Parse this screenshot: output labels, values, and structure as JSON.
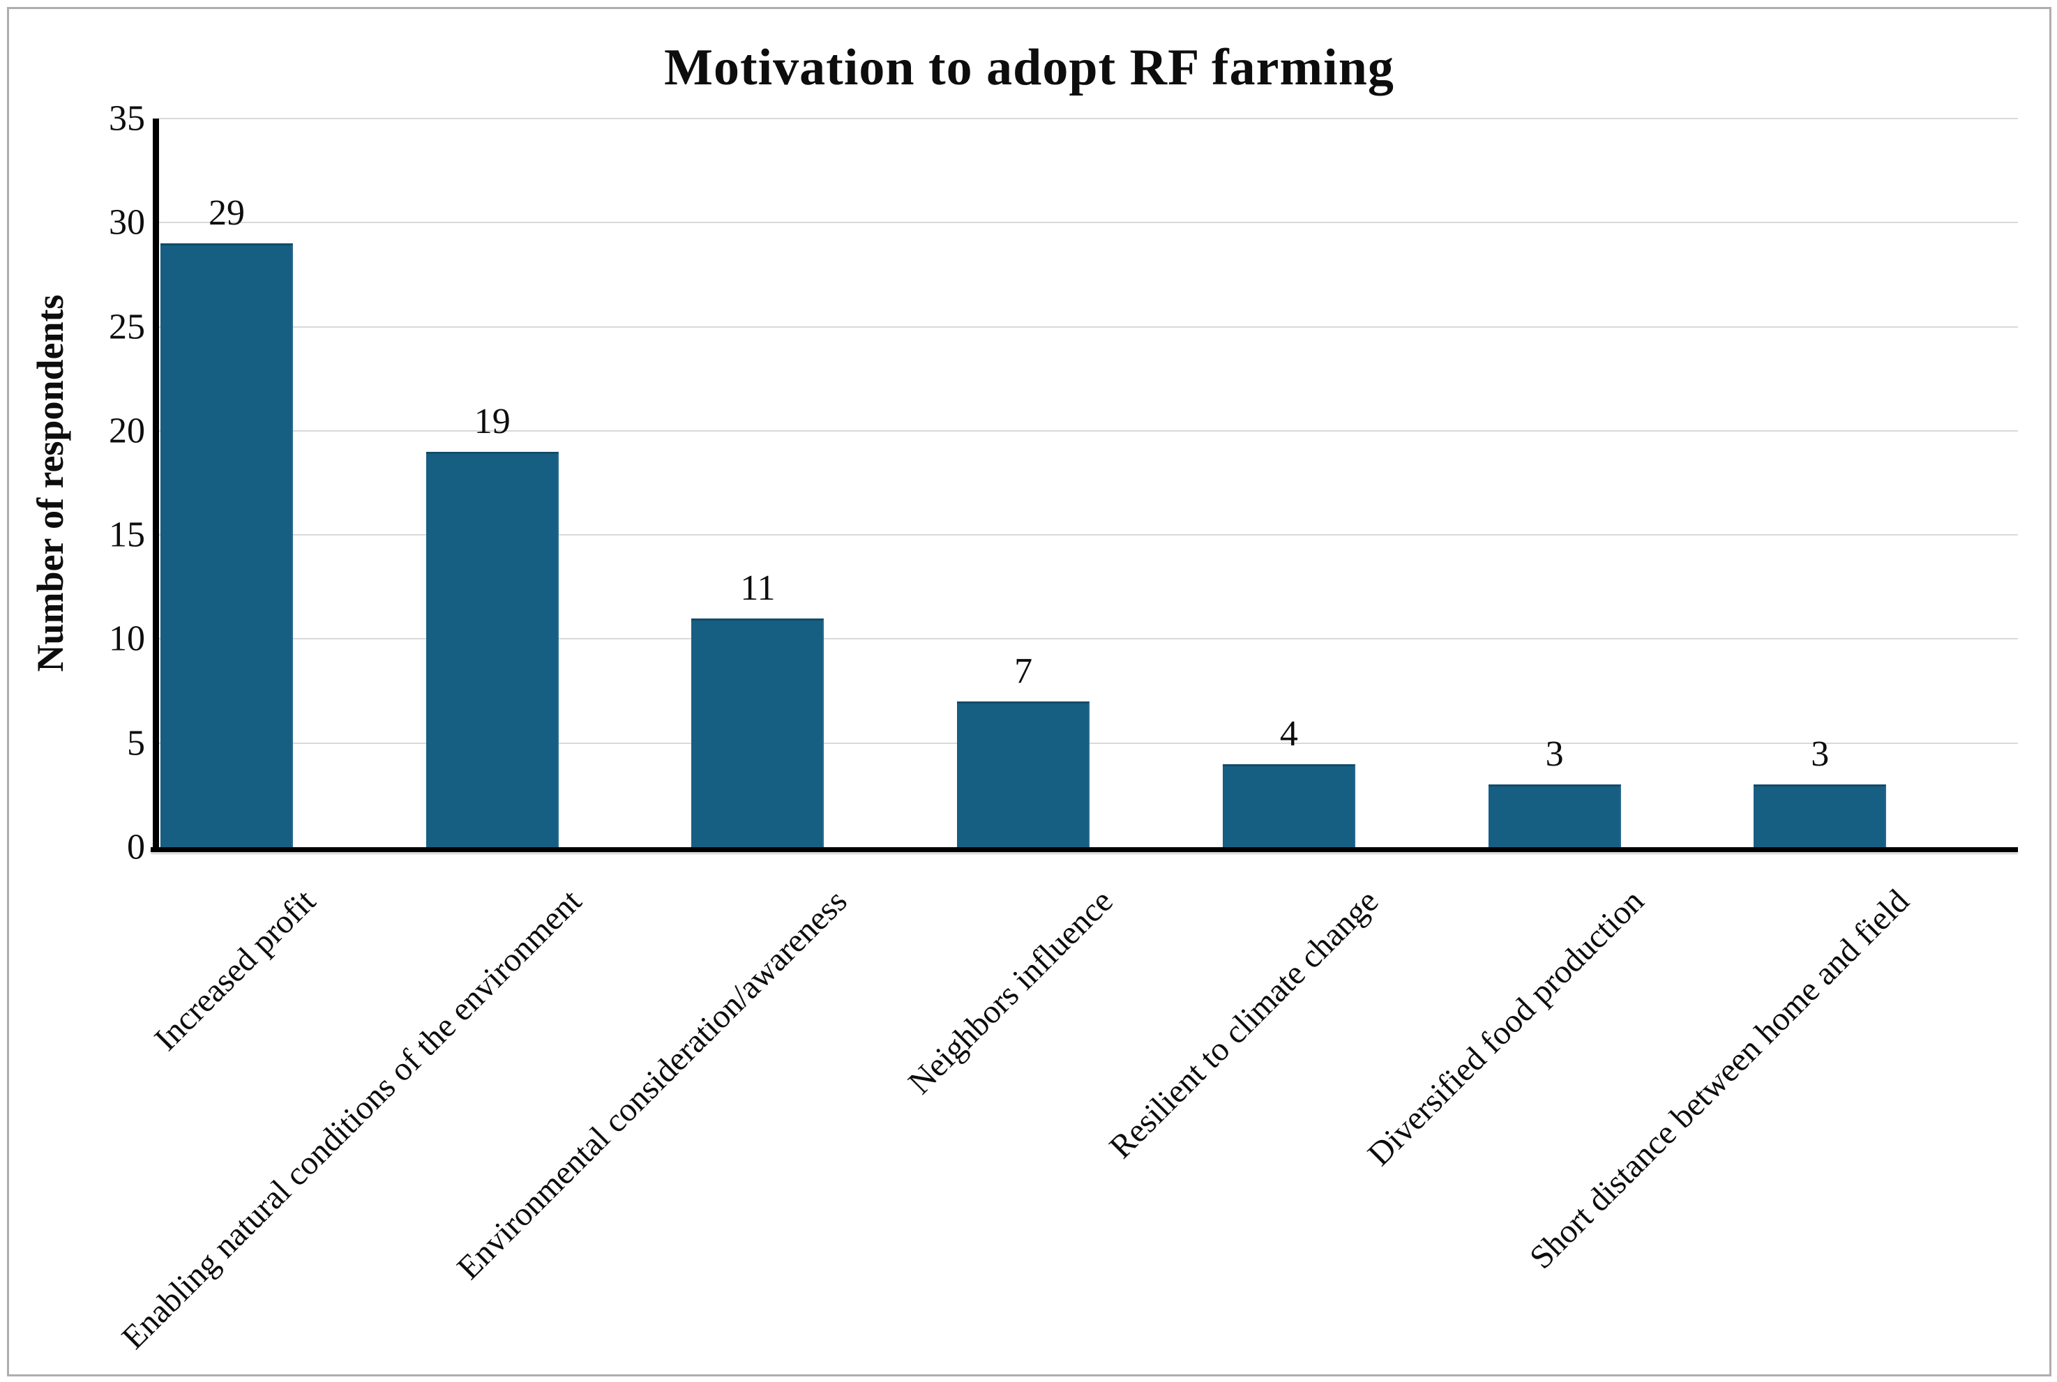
{
  "figure": {
    "background": "#ffffff",
    "border_color": "#aeaeae"
  },
  "chart_data": {
    "type": "bar",
    "title": "Motivation to adopt RF farming",
    "xlabel": "",
    "ylabel": "Number of respondents",
    "categories": [
      "Increased profit",
      "Enabling natural conditions of the environment",
      "Environmental consideration/awareness",
      "Neighbors influence",
      "Resilient to climate change",
      "Diversified food production",
      "Short distance between home and field"
    ],
    "values": [
      29,
      19,
      11,
      7,
      4,
      3,
      3
    ],
    "data_labels": [
      "29",
      "19",
      "11",
      "7",
      "4",
      "3",
      "3"
    ],
    "ylim": [
      0,
      35
    ],
    "yticks": [
      0,
      5,
      10,
      15,
      20,
      25,
      30,
      35
    ],
    "grid": "horizontal",
    "gridline_color": "#d9d9d9",
    "legend": "none",
    "bar_color": "#175e83",
    "axis_color": "#000000",
    "x_tick_rotation_deg": 45
  }
}
